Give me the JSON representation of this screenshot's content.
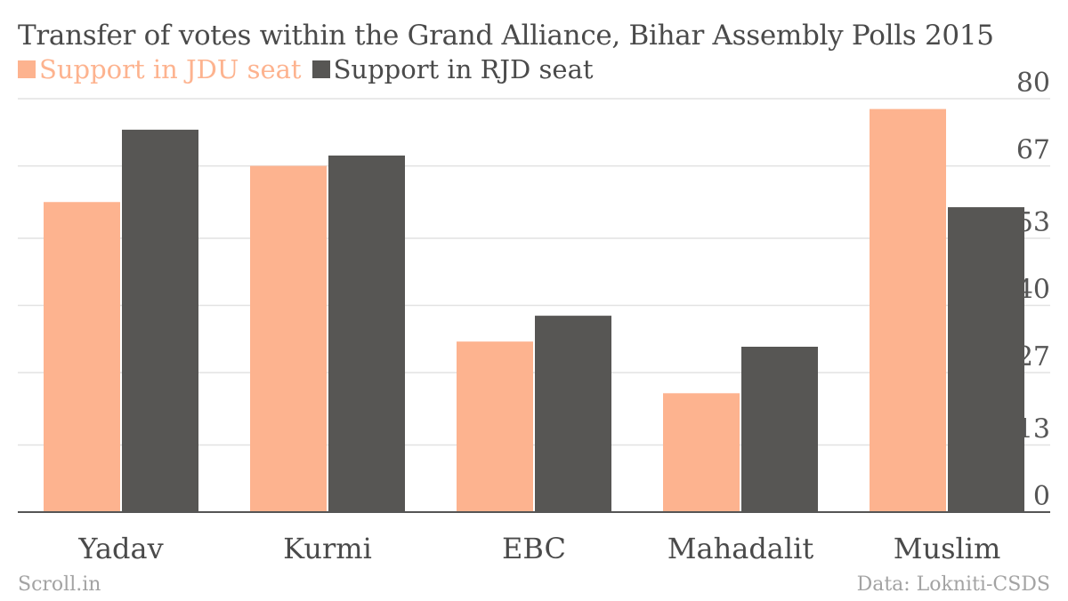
{
  "chart_data": {
    "type": "bar",
    "title": "Transfer of votes within the Grand Alliance, Bihar Assembly Polls 2015",
    "categories": [
      "Yadav",
      "Kurmi",
      "EBC",
      "Mahadalit",
      "Muslim"
    ],
    "series": [
      {
        "name": "Support in JDU seat",
        "values": [
          60,
          67,
          33,
          23,
          78
        ],
        "color": "#fdb38f"
      },
      {
        "name": "Support in RJD seat",
        "values": [
          74,
          69,
          38,
          32,
          59
        ],
        "color": "#575654"
      }
    ],
    "yticks": [
      0,
      13,
      27,
      40,
      53,
      67,
      80
    ],
    "ylim": [
      0,
      80
    ],
    "grid": true,
    "y_axis_side": "right",
    "legend_position": "top-left"
  },
  "footer": {
    "source_left": "Scroll.in",
    "source_right": "Data: Lokniti-CSDS"
  },
  "colors": {
    "title": "#4a4a4a",
    "tick_label": "#555555",
    "grid": "#e2e2e2",
    "axis": "#555555",
    "footer": "#a3a3a3"
  }
}
